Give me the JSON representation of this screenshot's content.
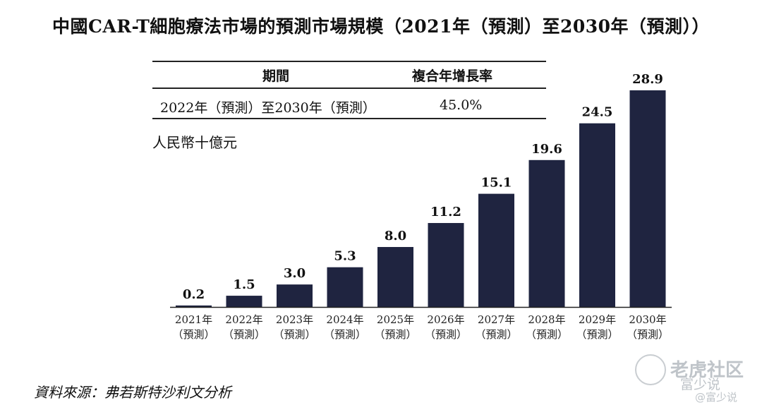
{
  "title": "中國CAR-T細胞療法市場的預測市場規模（2021年（預測）至2030年（預測））",
  "cagr_table": {
    "headers": [
      "期間",
      "複合年增長率"
    ],
    "rows": [
      [
        "2022年（預測）至2030年（預測）",
        "45.0%"
      ]
    ]
  },
  "unit_label": "人民幣十億元",
  "source": "資料來源：弗若斯特沙利文分析",
  "watermark": {
    "line1": "老虎社区",
    "line2": "富少说",
    "line3": "@富少说"
  },
  "chart_data": {
    "type": "bar",
    "categories": [
      "2021年（預測）",
      "2022年（預測）",
      "2023年（預測）",
      "2024年（預測）",
      "2025年（預測）",
      "2026年（預測）",
      "2027年（預測）",
      "2028年（預測）",
      "2029年（預測）",
      "2030年（預測）"
    ],
    "category_lines": [
      [
        "2021年",
        "（預測）"
      ],
      [
        "2022年",
        "（預測）"
      ],
      [
        "2023年",
        "（預測）"
      ],
      [
        "2024年",
        "（預測）"
      ],
      [
        "2025年",
        "（預測）"
      ],
      [
        "2026年",
        "（預測）"
      ],
      [
        "2027年",
        "（預測）"
      ],
      [
        "2028年",
        "（預測）"
      ],
      [
        "2029年",
        "（預測）"
      ],
      [
        "2030年",
        "（預測）"
      ]
    ],
    "values": [
      0.2,
      1.5,
      3.0,
      5.3,
      8.0,
      11.2,
      15.1,
      19.6,
      24.5,
      28.9
    ],
    "value_labels": [
      "0.2",
      "1.5",
      "3.0",
      "5.3",
      "8.0",
      "11.2",
      "15.1",
      "19.6",
      "24.5",
      "28.9"
    ],
    "ylabel": "人民幣十億元",
    "ylim": [
      0,
      28.9
    ],
    "bar_color": "#1f2440",
    "grid": false
  }
}
